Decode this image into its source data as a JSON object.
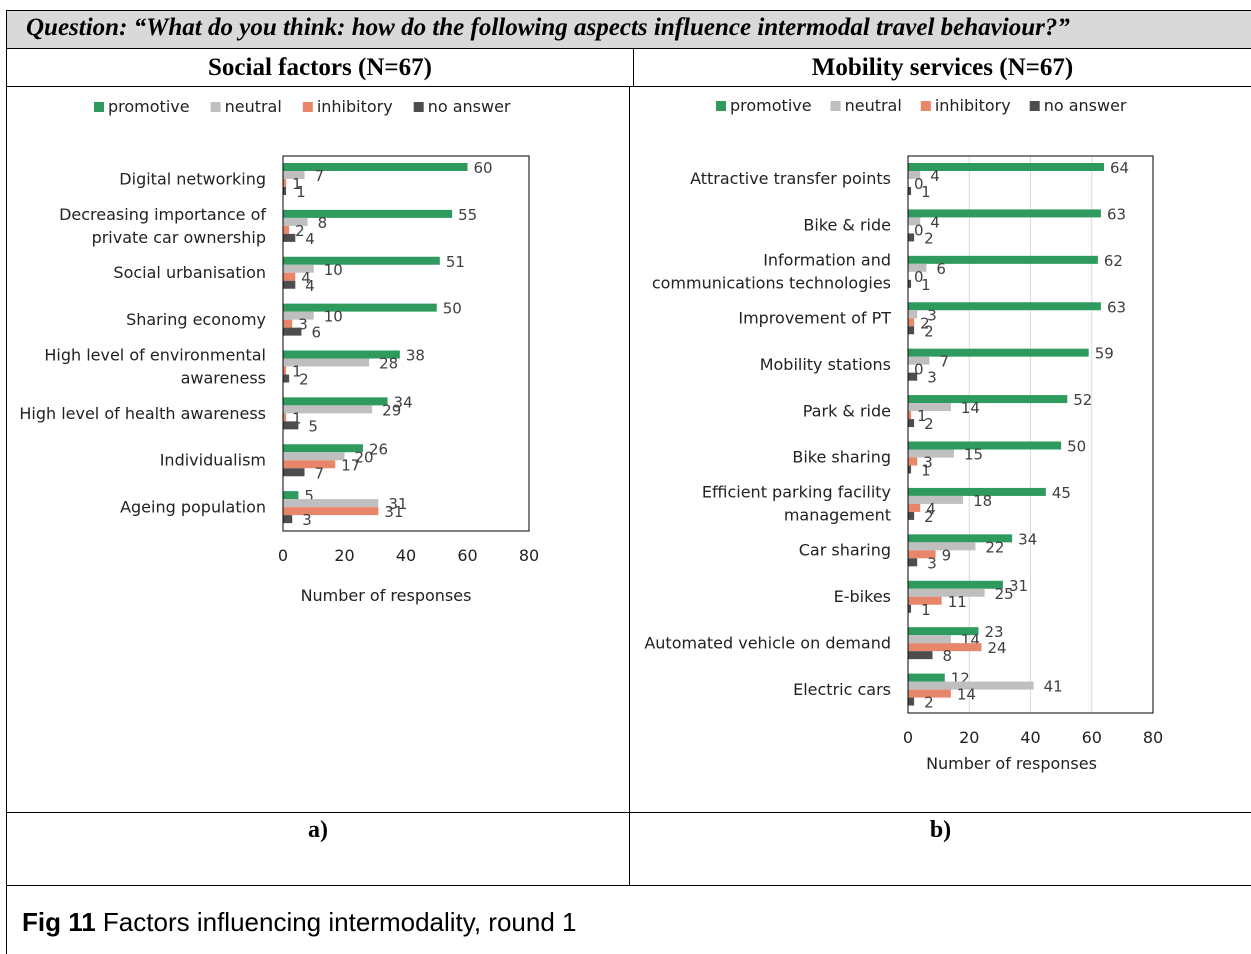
{
  "question": "Question: “What do you think: how do the following aspects influence intermodal travel behaviour?”",
  "headers": {
    "left": "Social factors (N=67)",
    "right": "Mobility services (N=67)"
  },
  "sublabels": {
    "left": "a)",
    "right": "b)"
  },
  "caption": {
    "label": "Fig 11",
    "text": " Factors influencing intermodality, round 1"
  },
  "colors": {
    "promotive": "#2e9a5e",
    "neutral": "#bfbfbf",
    "inhibitory": "#e8866a",
    "no_answer": "#4d4d4d"
  },
  "chart_data": [
    {
      "type": "bar",
      "orientation": "horizontal",
      "xlabel": "Number of responses",
      "xlim": [
        0,
        80
      ],
      "xticks": [
        0,
        20,
        40,
        60,
        80
      ],
      "grid": false,
      "legend_position": "top",
      "categories": [
        [
          "Digital networking"
        ],
        [
          "Decreasing importance of",
          "private car ownership"
        ],
        [
          "Social urbanisation"
        ],
        [
          "Sharing economy"
        ],
        [
          "High level of environmental",
          "awareness"
        ],
        [
          "High level of health awareness"
        ],
        [
          "Individualism"
        ],
        [
          "Ageing population"
        ]
      ],
      "series": [
        {
          "name": "promotive",
          "values": [
            60,
            55,
            51,
            50,
            38,
            34,
            26,
            5
          ]
        },
        {
          "name": "neutral",
          "values": [
            7,
            8,
            10,
            10,
            28,
            29,
            20,
            31
          ]
        },
        {
          "name": "inhibitory",
          "values": [
            1,
            2,
            4,
            3,
            1,
            1,
            17,
            31
          ]
        },
        {
          "name": "no answer",
          "values": [
            1,
            4,
            4,
            6,
            2,
            5,
            7,
            3
          ]
        }
      ]
    },
    {
      "type": "bar",
      "orientation": "horizontal",
      "xlabel": "Number of responses",
      "xlim": [
        0,
        80
      ],
      "xticks": [
        0,
        20,
        40,
        60,
        80
      ],
      "grid": true,
      "legend_position": "top",
      "categories": [
        [
          "Attractive transfer points"
        ],
        [
          "Bike & ride"
        ],
        [
          "Information and",
          "communications technologies"
        ],
        [
          "Improvement of PT"
        ],
        [
          "Mobility stations"
        ],
        [
          "Park & ride"
        ],
        [
          "Bike sharing"
        ],
        [
          "Efficient parking facility",
          "management"
        ],
        [
          "Car sharing"
        ],
        [
          "E-bikes"
        ],
        [
          "Automated vehicle on demand"
        ],
        [
          "Electric cars"
        ]
      ],
      "series": [
        {
          "name": "promotive",
          "values": [
            64,
            63,
            62,
            63,
            59,
            52,
            50,
            45,
            34,
            31,
            23,
            12
          ]
        },
        {
          "name": "neutral",
          "values": [
            4,
            4,
            6,
            3,
            7,
            14,
            15,
            18,
            22,
            25,
            14,
            41
          ]
        },
        {
          "name": "inhibitory",
          "values": [
            0,
            0,
            0,
            2,
            0,
            1,
            3,
            4,
            9,
            11,
            24,
            14
          ]
        },
        {
          "name": "no answer",
          "values": [
            1,
            2,
            1,
            2,
            3,
            2,
            1,
            2,
            3,
            1,
            8,
            2
          ]
        }
      ]
    }
  ]
}
